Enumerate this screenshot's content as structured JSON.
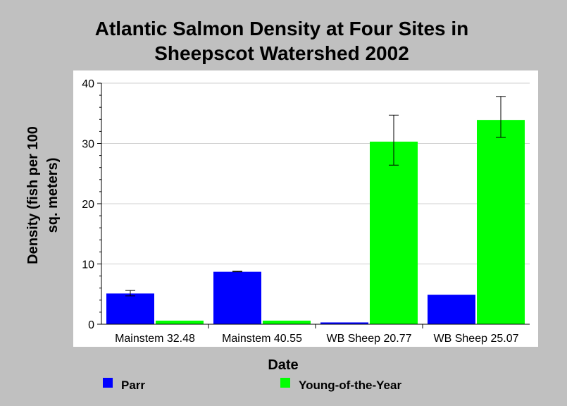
{
  "chart_data": {
    "type": "bar",
    "title_lines": [
      "Atlantic Salmon Density at Four Sites in",
      "Sheepscot Watershed 2002"
    ],
    "xlabel": "Date",
    "ylabel_lines": [
      "Density (fish per 100",
      "sq. meters)"
    ],
    "ylim": [
      0,
      40
    ],
    "yticks": [
      "0",
      "10",
      "20",
      "30",
      "40"
    ],
    "ytick_values": [
      0,
      10,
      20,
      30,
      40
    ],
    "grid": true,
    "legend_placement": "bottom",
    "categories": [
      "Mainstem 32.48",
      "Mainstem 40.55",
      "WB Sheep 20.77",
      "WB Sheep 25.07"
    ],
    "series": [
      {
        "name": "Parr",
        "color": "#0000ff",
        "values": [
          5.1,
          8.7,
          0.3,
          4.9
        ],
        "err_low": [
          4.7,
          8.7,
          0.3,
          4.9
        ],
        "err_high": [
          5.6,
          8.8,
          0.3,
          4.9
        ]
      },
      {
        "name": "Young-of-the-Year",
        "color": "#00ff00",
        "values": [
          0.6,
          0.6,
          30.3,
          33.9
        ],
        "err_low": [
          0.6,
          0.6,
          26.4,
          31.0
        ],
        "err_high": [
          0.6,
          0.6,
          34.7,
          37.8
        ]
      }
    ]
  }
}
